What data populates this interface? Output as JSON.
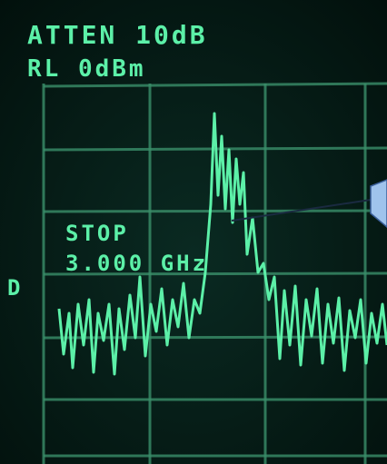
{
  "screen": {
    "atten": "ATTEN 10dB",
    "ref_level": "RL 0dBm",
    "stop_label": "STOP",
    "stop_freq": "3.000 GHz",
    "marker": "D"
  }
}
